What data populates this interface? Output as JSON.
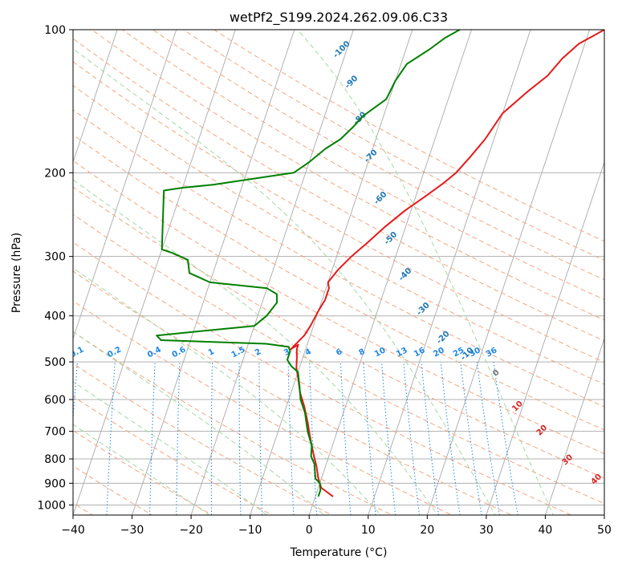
{
  "chart_data": {
    "type": "line",
    "title": "wetPf2_S199.2024.262.09.06.C33",
    "xlabel": "Temperature (°C)",
    "ylabel": "Pressure (hPa)",
    "xlim": [
      -40,
      50
    ],
    "ylim": [
      1050,
      100
    ],
    "y_scale": "log",
    "x_ticks": [
      -40,
      -30,
      -20,
      -10,
      0,
      10,
      20,
      30,
      40,
      50
    ],
    "x_tick_labels": [
      "−40",
      "−30",
      "−20",
      "−10",
      "0",
      "10",
      "20",
      "30",
      "40",
      "50"
    ],
    "y_ticks": [
      100,
      200,
      300,
      400,
      500,
      600,
      700,
      800,
      900,
      1000
    ],
    "y_tick_labels": [
      "100",
      "200",
      "300",
      "400",
      "500",
      "600",
      "700",
      "800",
      "900",
      "1000"
    ],
    "grid": true,
    "background_lines": {
      "isotherm_color": "#a9a9a9",
      "dry_adiabat_color": "#f4a582",
      "moist_adiabat_color": "#a6d6a6",
      "mixing_ratio_color": "#1e88e5",
      "isotherms_T": [
        -150,
        -140,
        -130,
        -120,
        -110,
        -100,
        -90,
        -80,
        -70,
        -60,
        -50,
        -40,
        -30,
        -20,
        -10,
        0,
        10,
        20,
        30,
        40,
        50
      ],
      "dry_adiabats_theta_C": [
        -70,
        -60,
        -50,
        -40,
        -30,
        -20,
        -10,
        0,
        10,
        20,
        30,
        40,
        50,
        60,
        70,
        80,
        90,
        100,
        110,
        120,
        130,
        140,
        150,
        160,
        170
      ],
      "moist_adiabats_T1000": [
        -20,
        -10,
        0,
        10,
        20,
        30,
        40
      ],
      "mixing_ratio_gkg": [
        0.1,
        0.2,
        0.4,
        0.6,
        1,
        1.5,
        2,
        3,
        4,
        6,
        8,
        10,
        13,
        16,
        20,
        25,
        30,
        36
      ]
    },
    "overlay_labels": {
      "adiabat_label_color": "#1f77b4",
      "adiabat_labels": [
        {
          "text": "-100",
          "T": -20.5,
          "p": 111
        },
        {
          "text": "-90",
          "T": -17,
          "p": 130
        },
        {
          "text": "-80",
          "T": -13.5,
          "p": 155
        },
        {
          "text": "-70",
          "T": -9.5,
          "p": 186
        },
        {
          "text": "-60",
          "T": -5.5,
          "p": 228
        },
        {
          "text": "-50",
          "T": -1.5,
          "p": 277
        },
        {
          "text": "-40",
          "T": 3,
          "p": 330
        },
        {
          "text": "-30",
          "T": 8,
          "p": 390
        },
        {
          "text": "-20",
          "T": 13,
          "p": 448
        },
        {
          "text": "-10",
          "T": 18,
          "p": 485
        }
      ],
      "moist_label_color": "#d62728",
      "moist_labels": [
        {
          "text": "0",
          "T": 24,
          "p": 532,
          "color": "#777777"
        },
        {
          "text": "10",
          "T": 29.5,
          "p": 625
        },
        {
          "text": "20",
          "T": 35,
          "p": 702
        },
        {
          "text": "30",
          "T": 41,
          "p": 810
        },
        {
          "text": "40",
          "T": 47,
          "p": 890
        }
      ],
      "mixing_ratio_labels": [
        "0.1",
        "0.2",
        "0.4",
        "0.6",
        "1",
        "1.5",
        "2",
        "3",
        "4",
        "6",
        "8",
        "10",
        "13",
        "16",
        "20",
        "25",
        "30",
        "36"
      ],
      "mixing_ratio_label_p": 482
    },
    "series": [
      {
        "color": "#e31a1c",
        "x": [
          3,
          0.5,
          -0.5,
          -1.5,
          -2.5,
          -3.5,
          -4.5,
          -5.5,
          -7,
          -8.5,
          -9.5,
          -10.5,
          -11,
          -11.5,
          -11.5,
          -12.5,
          -11,
          -10.5,
          -10,
          -9.5,
          -9.5,
          -10,
          -9,
          -7.5,
          -5.5,
          -3.5,
          -1,
          1.5,
          4,
          5.5,
          7,
          8.5,
          10,
          13,
          15.5,
          17,
          19,
          21,
          22.5
        ],
        "y": [
          960,
          920,
          880,
          830,
          790,
          750,
          710,
          670,
          620,
          580,
          545,
          515,
          490,
          470,
          460,
          470,
          440,
          420,
          390,
          370,
          350,
          340,
          320,
          300,
          280,
          260,
          240,
          225,
          210,
          200,
          185,
          170,
          150,
          135,
          125,
          115,
          107,
          103,
          100
        ]
      },
      {
        "color": "#008000",
        "x": [
          0.5,
          0.5,
          0,
          -1,
          -1.5,
          -2,
          -3,
          -3.5,
          -5,
          -6.5,
          -8,
          -9,
          -10,
          -11.5,
          -12.5,
          -12.5,
          -13,
          -17,
          -35,
          -36,
          -20,
          -18.5,
          -17.5,
          -18,
          -20,
          -30,
          -34,
          -34.5,
          -35,
          -38,
          -40,
          -43,
          -40,
          -35,
          -22,
          -20,
          -18,
          -16,
          -14.5,
          -13.5,
          -10.5,
          -10,
          -9,
          -6,
          -4,
          -2
        ],
        "y": [
          960,
          930,
          900,
          880,
          850,
          820,
          790,
          750,
          700,
          640,
          600,
          560,
          525,
          510,
          495,
          475,
          465,
          458,
          450,
          440,
          420,
          400,
          375,
          360,
          350,
          340,
          325,
          315,
          305,
          295,
          290,
          218,
          215,
          212,
          200,
          190,
          178,
          170,
          160,
          152,
          140,
          128,
          118,
          110,
          104,
          100
        ]
      }
    ]
  }
}
